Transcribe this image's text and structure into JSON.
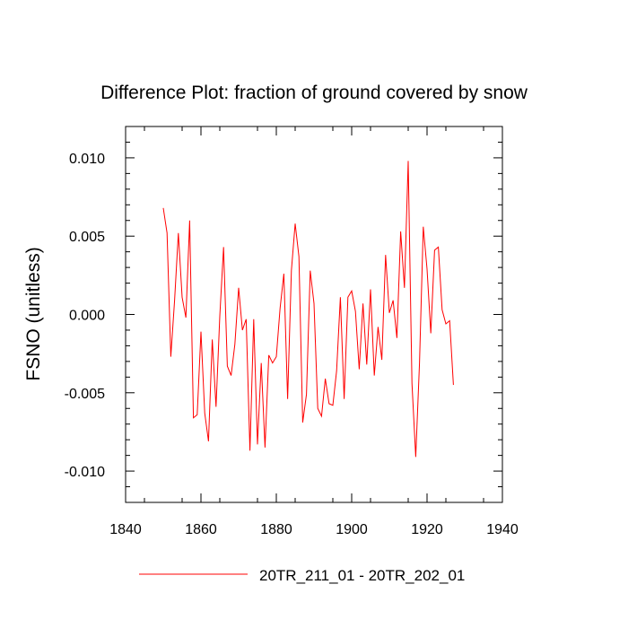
{
  "chart_data": {
    "type": "line",
    "title": "Difference Plot: fraction of ground covered by snow",
    "xlabel": "",
    "ylabel": "FSNO  (unitless)",
    "xlim": [
      1840,
      1940
    ],
    "ylim": [
      -0.012,
      0.012
    ],
    "xticks": [
      1840,
      1860,
      1880,
      1900,
      1920,
      1940
    ],
    "xtick_labels": [
      "1840",
      "1860",
      "1880",
      "1900",
      "1920",
      "1940"
    ],
    "yticks": [
      -0.01,
      -0.005,
      0.0,
      0.005,
      0.01
    ],
    "ytick_labels": [
      "-0.010",
      "-0.005",
      "0.000",
      "0.005",
      "0.010"
    ],
    "legend": {
      "placement": "bottom",
      "entries": [
        "20TR_211_01 - 20TR_202_01"
      ]
    },
    "line_color": "#ff0000",
    "series": [
      {
        "name": "20TR_211_01 - 20TR_202_01",
        "x": [
          1850,
          1851,
          1852,
          1853,
          1854,
          1855,
          1856,
          1857,
          1858,
          1859,
          1860,
          1861,
          1862,
          1863,
          1864,
          1865,
          1866,
          1867,
          1868,
          1869,
          1870,
          1871,
          1872,
          1873,
          1874,
          1875,
          1876,
          1877,
          1878,
          1879,
          1880,
          1881,
          1882,
          1883,
          1884,
          1885,
          1886,
          1887,
          1888,
          1889,
          1890,
          1891,
          1892,
          1893,
          1894,
          1895,
          1896,
          1897,
          1898,
          1899,
          1900,
          1901,
          1902,
          1903,
          1904,
          1905,
          1906,
          1907,
          1908,
          1909,
          1910,
          1911,
          1912,
          1913,
          1914,
          1915,
          1916,
          1917,
          1918,
          1919,
          1920,
          1921,
          1922,
          1923,
          1924,
          1925,
          1926,
          1927
        ],
        "values": [
          0.0068,
          0.0052,
          -0.0027,
          0.0009,
          0.0052,
          0.0011,
          -0.0002,
          0.006,
          -0.0066,
          -0.0064,
          -0.0011,
          -0.0063,
          -0.0081,
          -0.0016,
          -0.0059,
          -0.0001,
          0.0043,
          -0.0033,
          -0.0039,
          -0.0019,
          0.0017,
          -0.001,
          -0.0003,
          -0.0087,
          -0.0003,
          -0.0083,
          -0.0031,
          -0.0085,
          -0.0026,
          -0.0031,
          -0.0027,
          0.0004,
          0.0026,
          -0.0054,
          0.0028,
          0.0058,
          0.0037,
          -0.0069,
          -0.0051,
          0.0028,
          0.0007,
          -0.006,
          -0.0065,
          -0.0041,
          -0.0057,
          -0.0058,
          -0.0036,
          0.0011,
          -0.0054,
          0.0011,
          0.0015,
          0.0002,
          -0.0035,
          0.0007,
          -0.0032,
          0.0016,
          -0.0039,
          -0.0008,
          -0.0029,
          0.0038,
          0.0001,
          0.0009,
          -0.0015,
          0.0053,
          0.0017,
          0.0098,
          -0.0044,
          -0.0091,
          -0.0031,
          0.0056,
          0.0029,
          -0.0012,
          0.0041,
          0.0043,
          0.0003,
          -0.0006,
          -0.0004,
          -0.0045
        ]
      }
    ]
  }
}
